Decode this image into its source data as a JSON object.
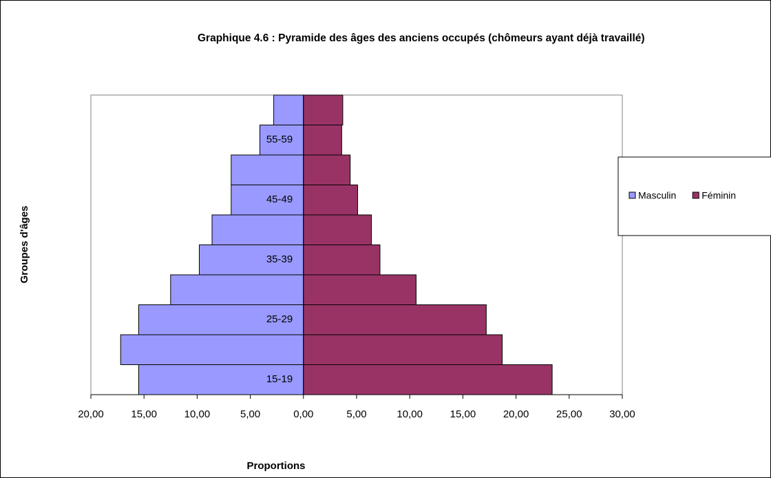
{
  "chart_data": {
    "type": "pyramid",
    "title": "Graphique 4.6 : Pyramide des âges des anciens occupés (chômeurs ayant déjà travaillé)",
    "x_label": "Proportions",
    "y_label": "Groupes d'âges",
    "categories": [
      "15-19",
      null,
      "25-29",
      null,
      "35-39",
      null,
      "45-49",
      null,
      "55-59",
      null
    ],
    "series": [
      {
        "name": "Masculin",
        "color": "#9999ff",
        "values": [
          -15.5,
          -17.2,
          -15.5,
          -12.5,
          -9.8,
          -8.6,
          -6.8,
          -6.8,
          -4.1,
          -2.8
        ]
      },
      {
        "name": "Féminin",
        "color": "#993366",
        "values": [
          23.4,
          18.7,
          17.2,
          10.6,
          7.2,
          6.4,
          5.1,
          4.4,
          3.6,
          3.7
        ]
      }
    ],
    "xlim": [
      -20,
      30
    ],
    "xticks": [
      {
        "value": -20,
        "label": "20,00"
      },
      {
        "value": -15,
        "label": "15,00"
      },
      {
        "value": -10,
        "label": "10,00"
      },
      {
        "value": -5,
        "label": "5,00"
      },
      {
        "value": 0,
        "label": "0,00"
      },
      {
        "value": 5,
        "label": "5,00"
      },
      {
        "value": 10,
        "label": "10,00"
      },
      {
        "value": 15,
        "label": "15,00"
      },
      {
        "value": 20,
        "label": "20,00"
      },
      {
        "value": 25,
        "label": "25,00"
      },
      {
        "value": 30,
        "label": "30,00"
      }
    ],
    "negative_tick_color": "#ff0000",
    "legend": "right"
  }
}
